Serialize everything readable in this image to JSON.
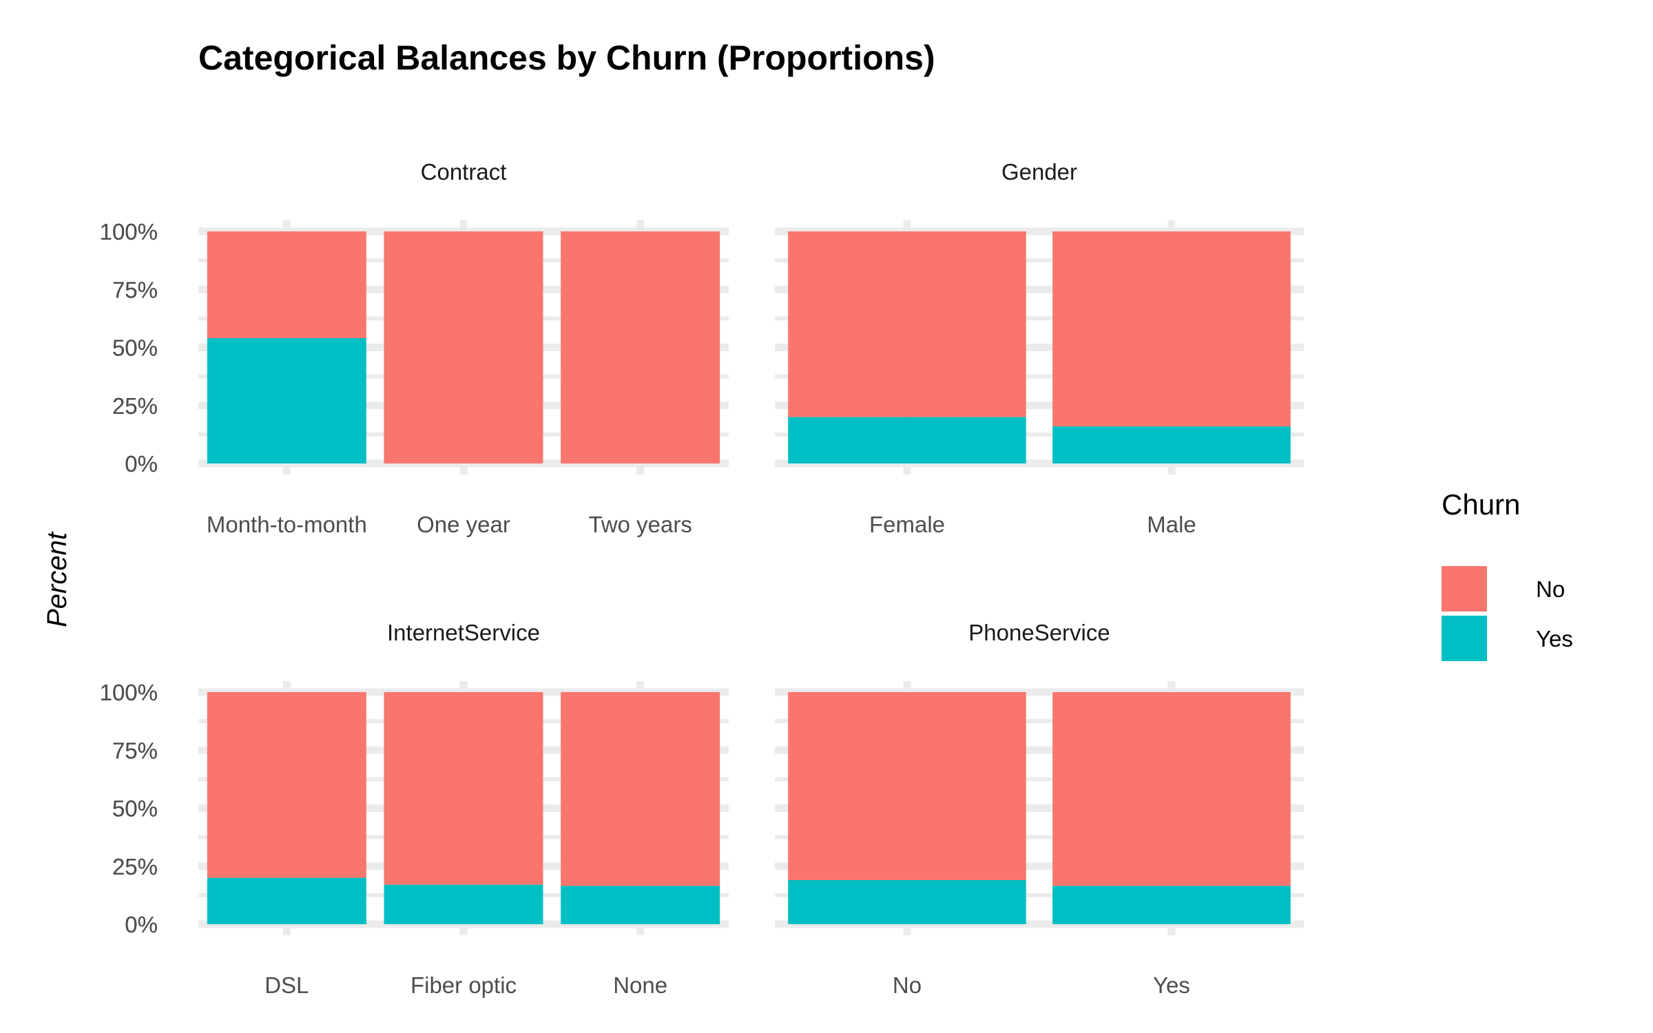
{
  "chart_data": {
    "type": "bar",
    "stacked": true,
    "title": "Categorical Balances by Churn (Proportions)",
    "ylabel": "Percent",
    "xlabel": "",
    "ylim": [
      0,
      1
    ],
    "y_ticks": [
      "0%",
      "25%",
      "50%",
      "75%",
      "100%"
    ],
    "grid": true,
    "legend": {
      "title": "Churn",
      "position": "right",
      "entries": [
        {
          "label": "No",
          "color": "#F8766D"
        },
        {
          "label": "Yes",
          "color": "#00BFC4"
        }
      ]
    },
    "panels": [
      {
        "name": "Contract",
        "categories": [
          "Month-to-month",
          "One year",
          "Two years"
        ],
        "series": [
          {
            "name": "Yes",
            "values": [
              0.54,
              0.0,
              0.0
            ]
          },
          {
            "name": "No",
            "values": [
              0.46,
              1.0,
              1.0
            ]
          }
        ]
      },
      {
        "name": "Gender",
        "categories": [
          "Female",
          "Male"
        ],
        "series": [
          {
            "name": "Yes",
            "values": [
              0.2,
              0.16
            ]
          },
          {
            "name": "No",
            "values": [
              0.8,
              0.84
            ]
          }
        ]
      },
      {
        "name": "InternetService",
        "categories": [
          "DSL",
          "Fiber optic",
          "None"
        ],
        "series": [
          {
            "name": "Yes",
            "values": [
              0.2,
              0.17,
              0.165
            ]
          },
          {
            "name": "No",
            "values": [
              0.8,
              0.83,
              0.835
            ]
          }
        ]
      },
      {
        "name": "PhoneService",
        "categories": [
          "No",
          "Yes"
        ],
        "series": [
          {
            "name": "Yes",
            "values": [
              0.19,
              0.165
            ]
          },
          {
            "name": "No",
            "values": [
              0.81,
              0.835
            ]
          }
        ]
      }
    ]
  }
}
